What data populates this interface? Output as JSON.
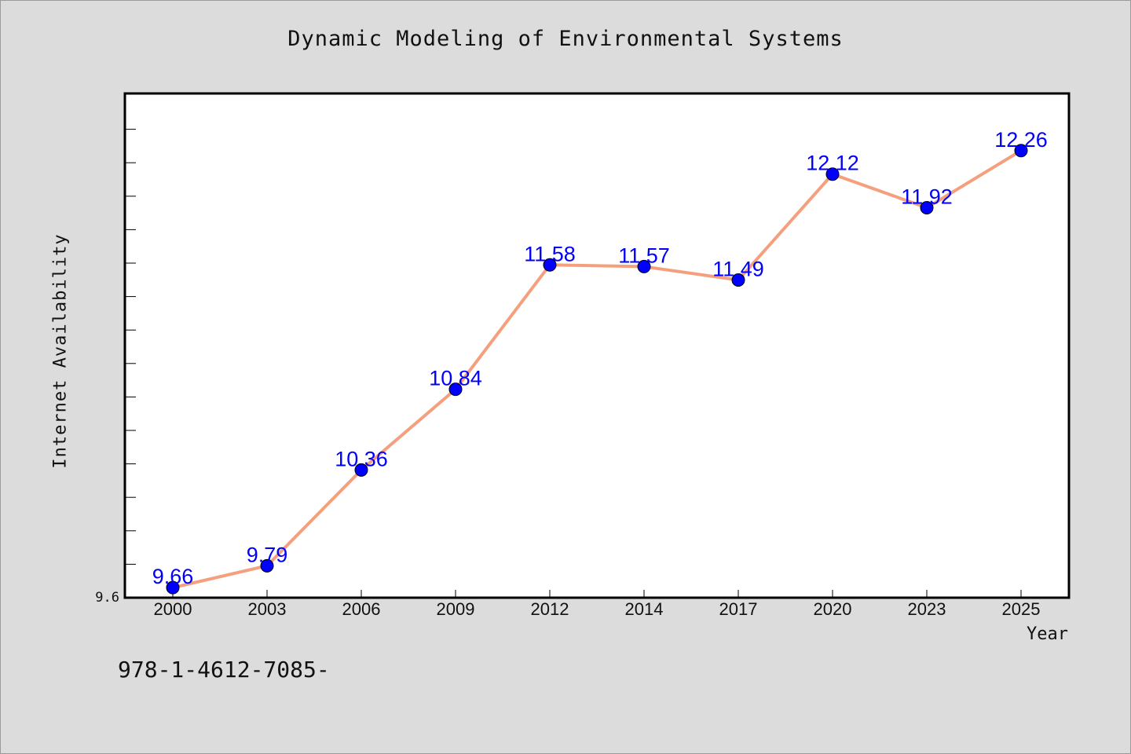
{
  "header": {
    "title": "Dynamic Modeling of Environmental Systems"
  },
  "footer": {
    "code": "978-1-4612-7085-"
  },
  "chart_data": {
    "type": "line",
    "title": "Dynamic Modeling of Environmental Systems",
    "xlabel": "Year",
    "ylabel": "Internet Availability",
    "categories": [
      "2000",
      "2003",
      "2006",
      "2009",
      "2012",
      "2014",
      "2017",
      "2020",
      "2023",
      "2025"
    ],
    "series": [
      {
        "values": [
          9.66,
          9.79,
          10.36,
          10.84,
          11.58,
          11.57,
          11.49,
          12.12,
          11.92,
          12.26
        ],
        "data_labels": [
          "9.66",
          "9.79",
          "10.36",
          "10.84",
          "11.58",
          "11.57",
          "11.49",
          "12.12",
          "11.92",
          "12.26"
        ]
      }
    ],
    "ylim": [
      9.6,
      12.6
    ],
    "ytick_label": "9.6",
    "grid": false,
    "colors": {
      "line": "#f4a07e",
      "marker": "#0000ff",
      "data_label": "#0000ff",
      "plot_background": "#ffffff",
      "page_background": "#dcdcdc"
    }
  }
}
